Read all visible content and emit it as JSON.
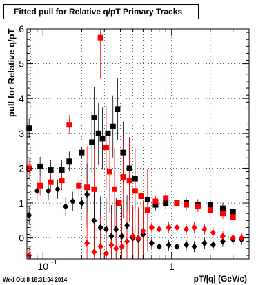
{
  "chart_data": {
    "type": "scatter",
    "title": "Fitted pull for Relative q/pT  Primary Tracks",
    "xlabel": "pT/|q| (GeV/c)",
    "ylabel": "pull for Relative q/pT",
    "xscale": "log",
    "xlim": [
      0.075,
      4.0
    ],
    "ylim": [
      -0.6,
      6.0
    ],
    "grid": true,
    "x_tick_labels": [
      {
        "value": 0.1,
        "label": "10",
        "exp": "-1"
      },
      {
        "value": 1,
        "label": "1",
        "exp": ""
      }
    ],
    "y_ticks": [
      0,
      1,
      2,
      3,
      4,
      5,
      6
    ],
    "series": [
      {
        "color": "#000000",
        "marker": "square",
        "x": [
          0.078,
          0.095,
          0.115,
          0.14,
          0.16,
          0.2,
          0.24,
          0.25,
          0.27,
          0.29,
          0.32,
          0.35,
          0.38,
          0.42,
          0.47,
          0.52,
          0.58,
          0.65,
          0.75,
          0.9,
          1.1,
          1.3,
          1.6,
          2.0,
          2.5,
          3.0
        ],
        "y": [
          3.15,
          2.05,
          1.95,
          1.95,
          2.2,
          2.45,
          2.75,
          3.45,
          3.0,
          2.85,
          3.0,
          3.2,
          3.7,
          2.45,
          2.0,
          1.7,
          1.2,
          1.1,
          0.95,
          1.0,
          1.0,
          1.0,
          0.95,
          0.95,
          0.85,
          0.75
        ]
      },
      {
        "color": "#ff0000",
        "marker": "square",
        "x": [
          0.078,
          0.095,
          0.115,
          0.14,
          0.16,
          0.19,
          0.22,
          0.25,
          0.28,
          0.31,
          0.33,
          0.36,
          0.39,
          0.42,
          0.47,
          0.52,
          0.58,
          0.65,
          0.75,
          0.9,
          1.1,
          1.3,
          1.6,
          2.0,
          2.5,
          3.0
        ],
        "y": [
          2.0,
          1.5,
          1.6,
          1.65,
          3.25,
          1.5,
          1.45,
          1.4,
          5.75,
          2.6,
          1.9,
          1.4,
          1.0,
          1.75,
          1.65,
          1.35,
          1.2,
          0.8,
          1.05,
          1.15,
          1.0,
          0.95,
          0.9,
          0.8,
          0.7,
          0.6
        ]
      },
      {
        "color": "#000000",
        "marker": "diamond",
        "x": [
          0.078,
          0.09,
          0.11,
          0.13,
          0.15,
          0.17,
          0.2,
          0.22,
          0.25,
          0.28,
          0.31,
          0.34,
          0.37,
          0.41,
          0.45,
          0.5,
          0.55,
          0.6,
          0.7,
          0.8,
          0.95,
          1.1,
          1.3,
          1.5,
          1.8,
          2.1,
          2.5,
          3.0,
          3.5
        ],
        "y": [
          0.65,
          1.35,
          1.35,
          1.4,
          0.9,
          1.05,
          1.0,
          1.25,
          0.5,
          0.3,
          0.25,
          0.05,
          0.25,
          0.05,
          0.35,
          0.0,
          -0.05,
          0.1,
          -0.15,
          -0.25,
          -0.2,
          -0.25,
          -0.2,
          -0.25,
          -0.15,
          -0.2,
          -0.1,
          -0.05,
          -0.05
        ]
      },
      {
        "color": "#ff0000",
        "marker": "diamond",
        "x": [
          0.078,
          0.22,
          0.25,
          0.28,
          0.31,
          0.34,
          0.37,
          0.41,
          0.45,
          0.5,
          0.55,
          0.6,
          0.7,
          0.8,
          0.95,
          1.1,
          1.3,
          1.5,
          1.8,
          2.1,
          2.5,
          3.0,
          3.5
        ],
        "y": [
          -0.5,
          -0.15,
          -0.4,
          -0.25,
          -0.45,
          -0.2,
          -0.3,
          -0.25,
          -0.1,
          0.05,
          0.0,
          0.2,
          0.3,
          0.25,
          0.3,
          0.3,
          0.25,
          0.3,
          0.25,
          0.15,
          0.05,
          0.0,
          0.0
        ]
      }
    ]
  },
  "stamp": "Wed Oct  8 18:31:04 2014"
}
